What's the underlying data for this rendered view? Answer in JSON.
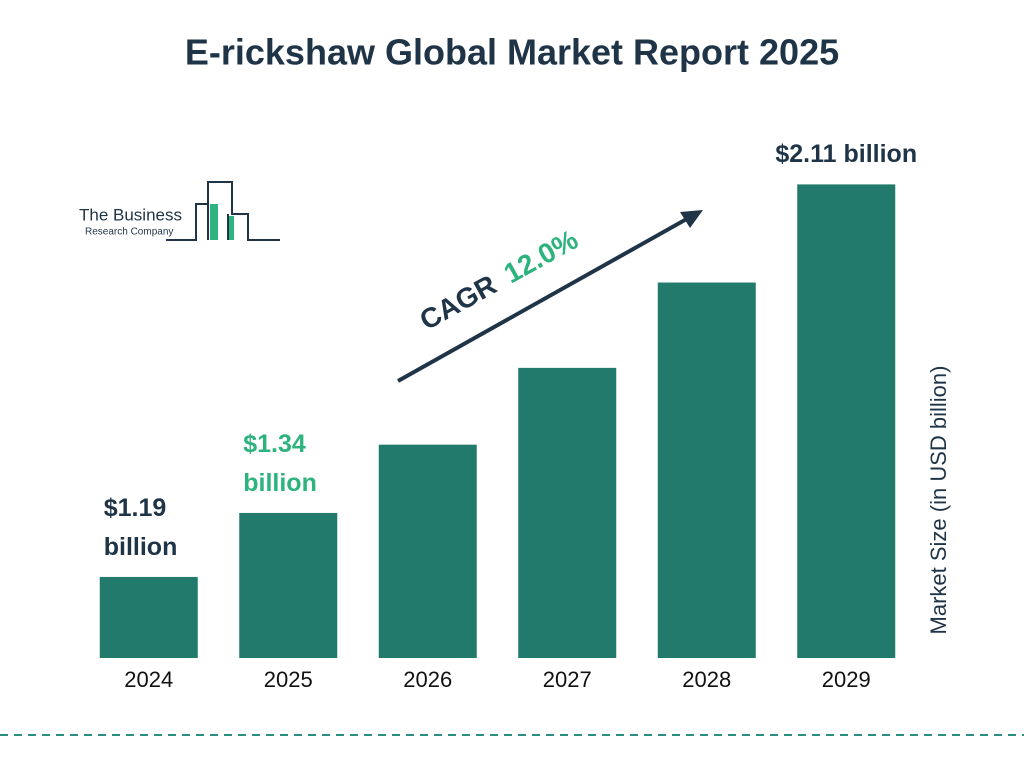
{
  "chart_data": {
    "type": "bar",
    "title": "E-rickshaw Global Market Report 2025",
    "categories": [
      "2024",
      "2025",
      "2026",
      "2027",
      "2028",
      "2029"
    ],
    "values": [
      1.19,
      1.34,
      1.5,
      1.68,
      1.88,
      2.11
    ],
    "value_labels": [
      "$1.19 billion",
      "$1.34 billion",
      null,
      null,
      null,
      "$2.11 billion"
    ],
    "value_label_colors": [
      "#1f3447",
      "#2db37d",
      null,
      null,
      null,
      "#1f3447"
    ],
    "color": "#217a6b",
    "ylim": [
      1,
      2.2
    ],
    "y_label": "Market Size (in USD billion)",
    "annotation": {
      "label": "CAGR",
      "value": "12.0%",
      "label_color": "#1f3447",
      "value_color": "#2db37d"
    },
    "logo": {
      "line1": "The Business",
      "line2": "Research Company"
    }
  }
}
